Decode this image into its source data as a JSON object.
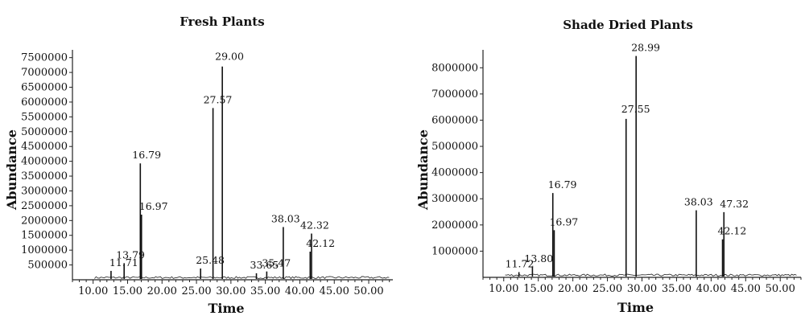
{
  "chart_data": [
    {
      "type": "line",
      "title": "Fresh Plants",
      "xlabel": "Time",
      "ylabel": "Abundance",
      "xlim": [
        7.0,
        53.5
      ],
      "ylim": [
        0,
        7600000
      ],
      "xticks": [
        10,
        15,
        20,
        25,
        30,
        35,
        40,
        45,
        50
      ],
      "xtick_labels": [
        "10.00",
        "15.00",
        "20.00",
        "25.00",
        "30.00",
        "35.00",
        "40.00",
        "45.00",
        "50.00"
      ],
      "yticks": [
        500000,
        1000000,
        1500000,
        2000000,
        2500000,
        3000000,
        3500000,
        4000000,
        4500000,
        5000000,
        5500000,
        6000000,
        6500000,
        7000000,
        7500000
      ],
      "ytick_labels": [
        "500000",
        "1000000",
        "1500000",
        "2000000",
        "2500000",
        "3000000",
        "3500000",
        "4000000",
        "4500000",
        "5000000",
        "5500000",
        "6000000",
        "6500000",
        "7000000",
        "7500000"
      ],
      "peaks": [
        {
          "x": 12.6,
          "y": 300000,
          "label": "11.71"
        },
        {
          "x": 14.5,
          "y": 560000,
          "label": "13.79"
        },
        {
          "x": 16.85,
          "y": 3930000,
          "label": "16.79"
        },
        {
          "x": 17.02,
          "y": 2200000,
          "label": "16.97"
        },
        {
          "x": 25.6,
          "y": 380000,
          "label": "25.48"
        },
        {
          "x": 27.4,
          "y": 5800000,
          "label": "27.57"
        },
        {
          "x": 28.75,
          "y": 7200000,
          "label": "29.00"
        },
        {
          "x": 33.7,
          "y": 220000,
          "label": "33.65"
        },
        {
          "x": 35.2,
          "y": 280000,
          "label": "35.47"
        },
        {
          "x": 37.6,
          "y": 1780000,
          "label": "38.03"
        },
        {
          "x": 41.7,
          "y": 1560000,
          "label": "42.32"
        },
        {
          "x": 41.5,
          "y": 950000,
          "label": "42.12"
        }
      ]
    },
    {
      "type": "line",
      "title": "Shade Dried Plants",
      "xlabel": "Time",
      "ylabel": "Abundance",
      "xlim": [
        7.0,
        53.0
      ],
      "ylim": [
        0,
        8500000
      ],
      "xticks": [
        10,
        15,
        20,
        25,
        30,
        35,
        40,
        45,
        50
      ],
      "xtick_labels": [
        "10.00",
        "15.00",
        "20.00",
        "25.00",
        "30.00",
        "35.00",
        "40.00",
        "45.00",
        "50.00"
      ],
      "yticks": [
        1000000,
        2000000,
        3000000,
        4000000,
        5000000,
        6000000,
        7000000,
        8000000
      ],
      "ytick_labels": [
        "1000000",
        "2000000",
        "3000000",
        "4000000",
        "5000000",
        "6000000",
        "7000000",
        "8000000"
      ],
      "peaks": [
        {
          "x": 12.2,
          "y": 200000,
          "label": "11.72"
        },
        {
          "x": 14.15,
          "y": 400000,
          "label": "13.80"
        },
        {
          "x": 17.1,
          "y": 3220000,
          "label": "16.79"
        },
        {
          "x": 17.3,
          "y": 1800000,
          "label": "16.97"
        },
        {
          "x": 27.7,
          "y": 6050000,
          "label": "27.55"
        },
        {
          "x": 29.15,
          "y": 8450000,
          "label": "28.99"
        },
        {
          "x": 37.85,
          "y": 2560000,
          "label": "38.03"
        },
        {
          "x": 41.85,
          "y": 2490000,
          "label": "47.32"
        },
        {
          "x": 41.65,
          "y": 1450000,
          "label": "42.12"
        }
      ]
    }
  ]
}
